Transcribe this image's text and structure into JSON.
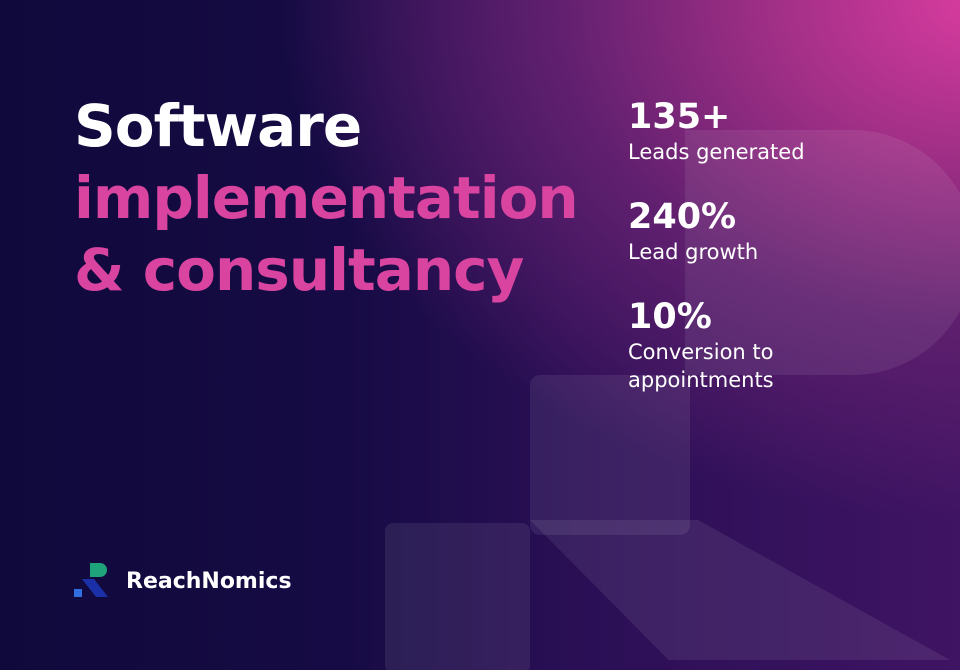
{
  "headline": {
    "line1": "Software",
    "line2": "implementation",
    "line3": "& consultancy"
  },
  "stats": [
    {
      "value": "135+",
      "label": "Leads generated"
    },
    {
      "value": "240%",
      "label": "Lead growth"
    },
    {
      "value": "10%",
      "label": "Conversion to appointments"
    }
  ],
  "brand": {
    "name": "ReachNomics"
  }
}
